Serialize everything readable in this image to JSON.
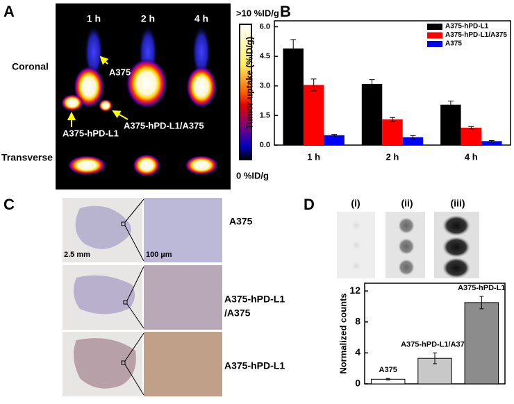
{
  "panel_a": {
    "label": "A",
    "times": [
      "1 h",
      "2 h",
      "4 h"
    ],
    "rows": [
      "Coronal",
      "Transverse"
    ],
    "annotations": [
      "A375",
      "A375-hPD-L1",
      "A375-hPD-L1/A375"
    ],
    "scale_max": ">10 %ID/g",
    "scale_min": "0 %ID/g"
  },
  "panel_c": {
    "label": "C",
    "scale_bars": [
      "2.5 mm",
      "100 µm"
    ],
    "rows": [
      [
        "A375"
      ],
      [
        "A375-hPD-L1",
        "/A375"
      ],
      [
        "A375-hPD-L1"
      ]
    ]
  },
  "panel_d": {
    "label": "D",
    "lanes": [
      "(i)",
      "(ii)",
      "(iii)"
    ]
  },
  "chart_data": [
    {
      "type": "bar",
      "panel_label": "B",
      "y_label": "Tumor uptake (%ID/g)",
      "categories": [
        "1 h",
        "2 h",
        "4 h"
      ],
      "series": [
        {
          "name": "A375-hPD-L1",
          "color": "#000000",
          "values": [
            4.9,
            3.1,
            2.05
          ],
          "errors": [
            0.45,
            0.22,
            0.18
          ]
        },
        {
          "name": "A375-hPD-L1/A375",
          "color": "#ff0000",
          "values": [
            3.05,
            1.3,
            0.88
          ],
          "errors": [
            0.3,
            0.1,
            0.06
          ]
        },
        {
          "name": "A375",
          "color": "#0000ff",
          "values": [
            0.5,
            0.4,
            0.2
          ],
          "errors": [
            0.04,
            0.08,
            0.03
          ]
        }
      ],
      "ylim": [
        0,
        6.3
      ],
      "yticks": [
        {
          "value": 0,
          "label": "0.0"
        },
        1.5,
        {
          "value": 3,
          "label": "3.0"
        },
        4.5,
        {
          "value": 6,
          "label": "6.0"
        }
      ],
      "legend": "top-right"
    },
    {
      "type": "bar",
      "panel_label": "D",
      "y_label": "Normalized counts",
      "categories": [
        "A375",
        "A375-hPD-L1/A375",
        "A375-hPD-L1"
      ],
      "colors": [
        "#ffffff",
        "#c8c8c8",
        "#8c8c8c"
      ],
      "values": [
        0.6,
        3.3,
        10.5
      ],
      "errors": [
        0.1,
        0.7,
        0.8
      ],
      "ylim": [
        0,
        13
      ],
      "yticks": [
        0,
        4,
        8,
        12
      ]
    }
  ]
}
